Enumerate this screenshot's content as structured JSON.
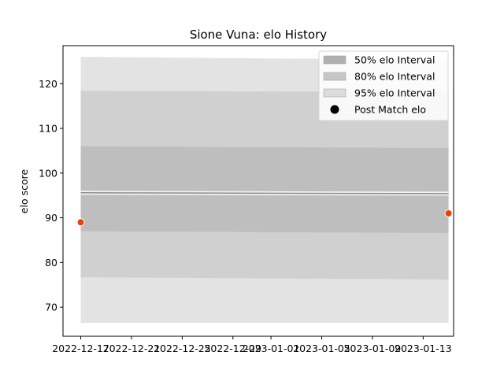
{
  "chart_data": {
    "type": "line",
    "title": "Sione Vuna: elo History",
    "xlabel": "",
    "ylabel": "elo score",
    "x_ticks": [
      "2022-12-17",
      "2022-12-21",
      "2022-12-25",
      "2022-12-29",
      "2023-01-01",
      "2023-01-05",
      "2023-01-09",
      "2023-01-13"
    ],
    "x_tick_days": [
      0,
      4,
      8,
      12,
      15,
      19,
      23,
      27
    ],
    "xlim_days": [
      -1.4,
      29.4
    ],
    "y_ticks": [
      70,
      80,
      90,
      100,
      110,
      120
    ],
    "ylim": [
      63.5,
      128.5
    ],
    "grid": false,
    "legend_position": "top-right",
    "x": [
      "2022-12-17",
      "2023-01-15"
    ],
    "x_days": [
      0,
      29
    ],
    "mean": [
      95.6,
      95.4
    ],
    "bands": [
      {
        "name": "95% elo Interval",
        "lower": [
          66.5,
          66.5
        ],
        "upper": [
          126.0,
          125.3
        ],
        "color": "#e3e3e3"
      },
      {
        "name": "80% elo Interval",
        "lower": [
          76.7,
          76.2
        ],
        "upper": [
          118.4,
          118.1
        ],
        "color": "#d0d0d0"
      },
      {
        "name": "50% elo Interval",
        "lower": [
          87.0,
          86.6
        ],
        "upper": [
          106.0,
          105.6
        ],
        "color": "#bebebe"
      }
    ],
    "post_match": {
      "name": "Post Match elo",
      "x_days": [
        0,
        29
      ],
      "values": [
        89.0,
        91.0
      ],
      "color": "#e8410e"
    }
  },
  "legend": [
    {
      "label": "50% elo Interval",
      "kind": "patch",
      "color": "#b0b0b0"
    },
    {
      "label": "80% elo Interval",
      "kind": "patch",
      "color": "#c6c6c6"
    },
    {
      "label": "95% elo Interval",
      "kind": "patch",
      "color": "#dcdcdc"
    },
    {
      "label": "Post Match elo",
      "kind": "dot",
      "color": "#000000"
    }
  ]
}
